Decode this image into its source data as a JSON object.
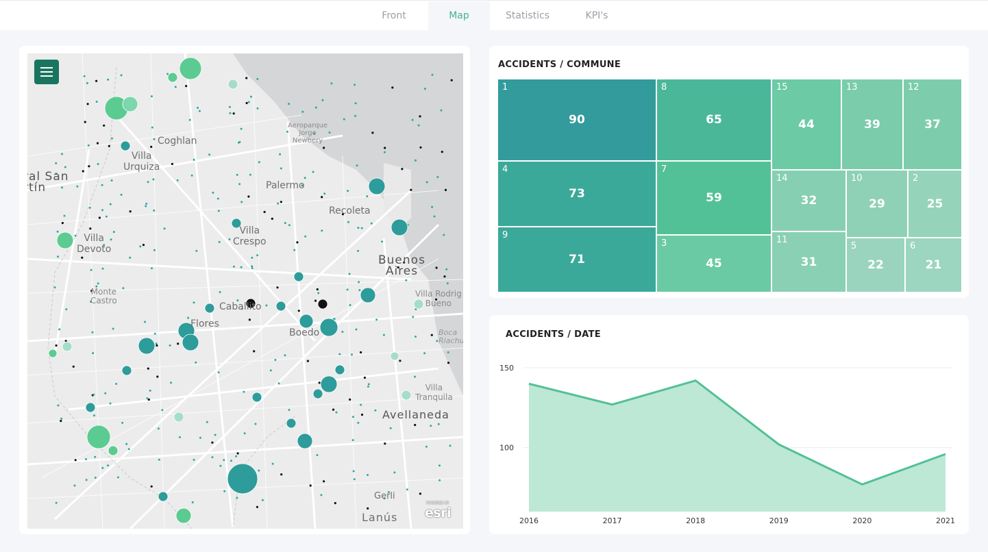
{
  "nav": {
    "tabs": [
      {
        "label": "Front",
        "active": false
      },
      {
        "label": "Map",
        "active": true
      },
      {
        "label": "Statistics",
        "active": false
      },
      {
        "label": "KPI's",
        "active": false
      }
    ]
  },
  "map": {
    "menu_icon": "hamburger-menu-icon",
    "labels": {
      "san_martin": "ral San\nrtín",
      "coghlan": "Coghlan",
      "aeroparque": "Aeroparque\nJorge\nNewbery",
      "villa_urquiza": "Villa\nUrquiza",
      "palermo": "Palermo",
      "recoleta": "Recoleta",
      "villa_crespo": "Villa\nCrespo",
      "villa_devoto": "Villa\nDevoto",
      "buenos_aires": "Buenos\nAires",
      "monte_castro": "Monte\nCastro",
      "caballito": "Caballito",
      "villa_rodrigo_bueno": "Villa Rodrig\nBueno",
      "flores": "Flores",
      "boedo": "Boedo",
      "boca_riachuelo": "Boca\nRiachu",
      "villa_tranquila": "Villa\nTranquila",
      "avellaneda": "Avellaneda",
      "gerli": "Gerli",
      "lanus": "Lanús"
    },
    "attribution": "esri",
    "attribution_small": "POWERED BY"
  },
  "treemap": {
    "title": "ACCIDENTS / COMMUNE",
    "cells": [
      {
        "id": "1",
        "value": "90",
        "color": "#339b9b"
      },
      {
        "id": "4",
        "value": "73",
        "color": "#3ba99a"
      },
      {
        "id": "9",
        "value": "71",
        "color": "#3ba99a"
      },
      {
        "id": "8",
        "value": "65",
        "color": "#4bb799"
      },
      {
        "id": "7",
        "value": "59",
        "color": "#53c197"
      },
      {
        "id": "3",
        "value": "45",
        "color": "#6acaa4"
      },
      {
        "id": "15",
        "value": "44",
        "color": "#6ccaa5"
      },
      {
        "id": "13",
        "value": "39",
        "color": "#7accab"
      },
      {
        "id": "12",
        "value": "37",
        "color": "#7dcdad"
      },
      {
        "id": "14",
        "value": "32",
        "color": "#87cfb3"
      },
      {
        "id": "10",
        "value": "29",
        "color": "#8fd1b7"
      },
      {
        "id": "2",
        "value": "25",
        "color": "#96d3bb"
      },
      {
        "id": "11",
        "value": "31",
        "color": "#89d0b4"
      },
      {
        "id": "5",
        "value": "22",
        "color": "#9ad4bf"
      },
      {
        "id": "6",
        "value": "21",
        "color": "#9cd5c0"
      }
    ]
  },
  "date_chart": {
    "title": "ACCIDENTS / DATE"
  },
  "chart_data": {
    "type": "area",
    "title": "ACCIDENTS / DATE",
    "x": [
      "2016",
      "2017",
      "2018",
      "2019",
      "2020",
      "2021"
    ],
    "series": [
      {
        "values": [
          140,
          127,
          142,
          102,
          77,
          96
        ]
      }
    ],
    "yticks": [
      100,
      150
    ],
    "ylim": [
      60,
      150
    ],
    "grid": true,
    "colors": {
      "line": "#52c095",
      "fill": "#bce8d5"
    }
  }
}
